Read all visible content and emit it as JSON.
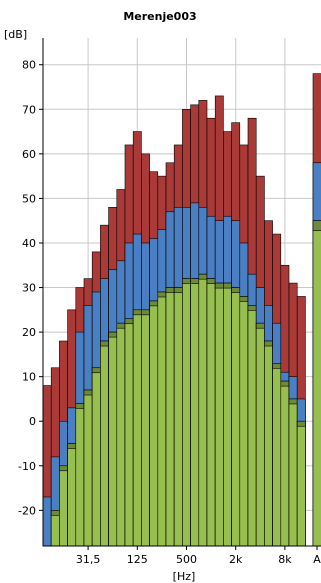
{
  "chart_data": {
    "type": "bar",
    "title": "Merenje003",
    "ylabel": "[dB]",
    "xlabel": "[Hz]",
    "ylim": [
      -28,
      86
    ],
    "y_ticks": [
      -20,
      -10,
      0,
      10,
      20,
      30,
      40,
      50,
      60,
      70,
      80
    ],
    "x_ticks": [
      {
        "label": "31,5",
        "index": 5
      },
      {
        "label": "125",
        "index": 11
      },
      {
        "label": "500",
        "index": 17
      },
      {
        "label": "2k",
        "index": 23
      },
      {
        "label": "8k",
        "index": 29
      }
    ],
    "overall_label": "A",
    "grid": true,
    "colors": {
      "top": "#a93a38",
      "middle": "#4a7fc4",
      "bottom": "#97bf4f",
      "bottom_dark": "#6d8a3c"
    },
    "series": [
      {
        "name": "",
        "color": "#a93a38",
        "values": [
          8,
          12,
          18,
          25,
          30,
          32,
          38,
          44,
          48,
          52,
          62,
          65,
          60,
          56,
          55,
          58,
          62,
          70,
          71,
          72,
          68,
          73,
          65,
          67,
          62,
          68,
          55,
          45,
          42,
          35,
          31,
          28
        ]
      },
      {
        "name": "",
        "color": "#4a7fc4",
        "values": [
          -17,
          -8,
          0,
          3,
          20,
          26,
          29,
          32,
          34,
          36,
          40,
          42,
          40,
          41,
          43,
          47,
          48,
          48,
          49,
          48,
          46,
          45,
          46,
          45,
          40,
          33,
          30,
          26,
          22,
          11,
          10,
          5
        ]
      },
      {
        "name": "",
        "color": "#97bf4f",
        "values": [
          -28,
          -20,
          -10,
          -5,
          4,
          7,
          12,
          18,
          20,
          22,
          23,
          25,
          25,
          27,
          29,
          30,
          30,
          32,
          32,
          33,
          32,
          31,
          31,
          30,
          28,
          26,
          22,
          18,
          13,
          9,
          5,
          0
        ]
      }
    ],
    "overall": {
      "top": 78,
      "middle": 58,
      "bottom": 45
    }
  }
}
